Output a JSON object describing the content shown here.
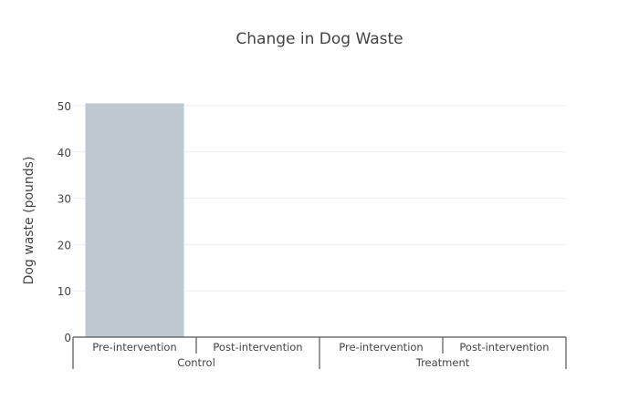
{
  "chart_data": {
    "type": "bar",
    "title": "Change in Dog Waste",
    "xlabel": "",
    "ylabel": "Dog waste (pounds)",
    "groups": [
      {
        "name": "Control",
        "categories": [
          "Pre-intervention",
          "Post-intervention"
        ]
      },
      {
        "name": "Treatment",
        "categories": [
          "Pre-intervention",
          "Post-intervention"
        ]
      }
    ],
    "categories": [
      "Pre-intervention",
      "Post-intervention",
      "Pre-intervention",
      "Post-intervention"
    ],
    "values": [
      50.5,
      0,
      0,
      0
    ],
    "ylim": [
      0,
      50
    ],
    "yticks": [
      0,
      10,
      20,
      30,
      40,
      50
    ],
    "grid": true,
    "bar_color": "#bec8d1",
    "grid_color": "#eeeeee",
    "axis_color": "#555555"
  }
}
